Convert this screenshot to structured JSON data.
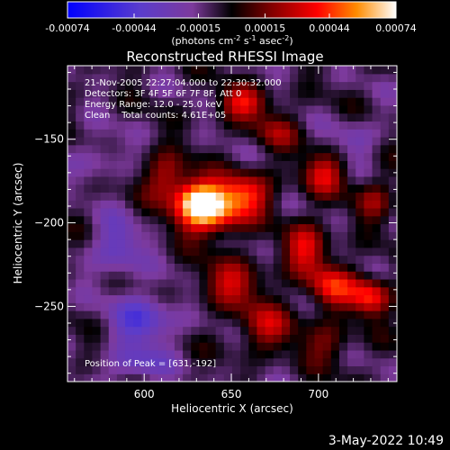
{
  "colorbar": {
    "tick_labels": [
      "-0.00074",
      "-0.00044",
      "-0.00015",
      "0.00015",
      "0.00044",
      "0.00074"
    ],
    "tick_values": [
      -0.00074,
      -0.00044,
      -0.00015,
      0.00015,
      0.00044,
      0.00074
    ],
    "units_prefix": "(photons cm",
    "units_sup1": "-2",
    "units_mid": " s",
    "units_sup2": "-1",
    "units_mid2": " asec",
    "units_sup3": "-2",
    "units_suffix": ")",
    "range": [
      -0.00074,
      0.00074
    ]
  },
  "annotations": {
    "time": "21-Nov-2005 22:27:04.000 to 22:30:32.000",
    "detectors": "Detectors: 3F 4F 5F 6F 7F 8F, Att 0",
    "energy": "Energy Range: 12.0 - 25.0 keV",
    "clean": "Clean    Total counts: 4.61E+05",
    "peak": "Position of Peak = [631,-192]"
  },
  "footer": {
    "date": "3-May-2022 10:49"
  },
  "colors": {
    "background": "#000000",
    "axes": "#ffffff"
  },
  "chart_data": {
    "type": "heatmap",
    "title": "Reconstructed RHESSI Image",
    "xlabel": "Heliocentric X (arcsec)",
    "ylabel": "Heliocentric Y (arcsec)",
    "xlim": [
      556,
      745
    ],
    "ylim": [
      -295,
      -106
    ],
    "x_ticks": [
      600,
      650,
      700
    ],
    "y_ticks": [
      -150,
      -200,
      -250
    ],
    "peak": [
      631,
      -192
    ],
    "colormap": [
      "#0000ff",
      "#5a3ccc",
      "#7d3a9c",
      "#000000",
      "#800000",
      "#ff0000",
      "#ff8c00",
      "#ffffff"
    ],
    "grid_cells": 40,
    "hotspots": [
      {
        "x": 637,
        "y": -193,
        "amp": 0.00068,
        "sx": 13,
        "sy": 10
      },
      {
        "x": 631,
        "y": -185,
        "amp": 0.0005,
        "sx": 9,
        "sy": 8
      },
      {
        "x": 658,
        "y": -182,
        "amp": 0.00045,
        "sx": 11,
        "sy": 9
      },
      {
        "x": 613,
        "y": -172,
        "amp": 0.00035,
        "sx": 9,
        "sy": 10
      },
      {
        "x": 657,
        "y": -128,
        "amp": 0.00042,
        "sx": 10,
        "sy": 7
      },
      {
        "x": 693,
        "y": -215,
        "amp": 0.0004,
        "sx": 9,
        "sy": 11
      },
      {
        "x": 708,
        "y": -238,
        "amp": 0.00042,
        "sx": 10,
        "sy": 9
      },
      {
        "x": 730,
        "y": -244,
        "amp": 0.0005,
        "sx": 8,
        "sy": 8
      },
      {
        "x": 703,
        "y": -170,
        "amp": 0.00038,
        "sx": 9,
        "sy": 9
      },
      {
        "x": 650,
        "y": -236,
        "amp": 0.00035,
        "sx": 13,
        "sy": 10
      },
      {
        "x": 670,
        "y": -262,
        "amp": 0.00032,
        "sx": 12,
        "sy": 10
      },
      {
        "x": 705,
        "y": -272,
        "amp": 0.00024,
        "sx": 10,
        "sy": 9
      },
      {
        "x": 676,
        "y": -145,
        "amp": 0.00024,
        "sx": 10,
        "sy": 8
      },
      {
        "x": 732,
        "y": -186,
        "amp": 0.00026,
        "sx": 8,
        "sy": 9
      },
      {
        "x": 600,
        "y": -258,
        "amp": -0.00034,
        "sx": 13,
        "sy": 11
      },
      {
        "x": 585,
        "y": -215,
        "amp": -0.00028,
        "sx": 10,
        "sy": 12
      },
      {
        "x": 595,
        "y": -285,
        "amp": -0.00026,
        "sx": 12,
        "sy": 7
      },
      {
        "x": 720,
        "y": -150,
        "amp": -0.00018,
        "sx": 9,
        "sy": 8
      },
      {
        "x": 575,
        "y": -160,
        "amp": -0.00016,
        "sx": 9,
        "sy": 10
      }
    ]
  }
}
